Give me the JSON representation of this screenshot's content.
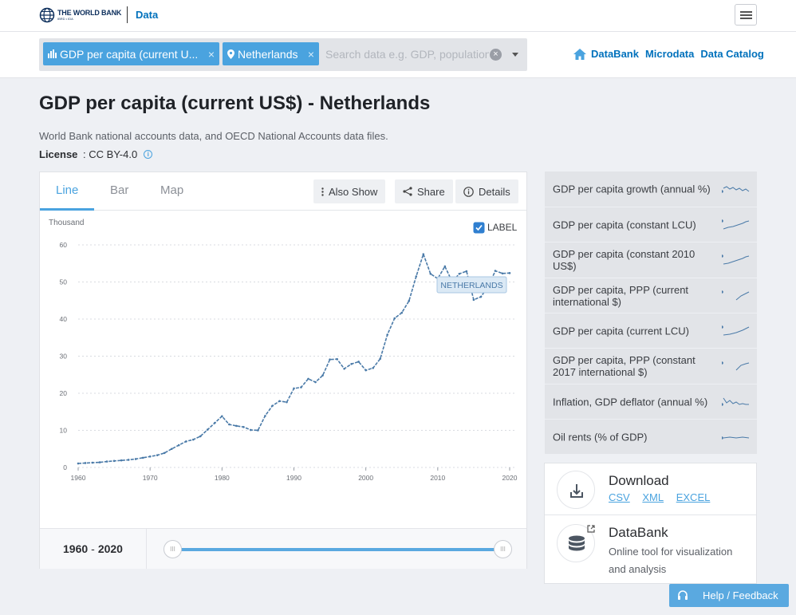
{
  "header": {
    "logo_name": "THE WORLD BANK",
    "logo_sub": "IBRD • IDA",
    "section": "Data"
  },
  "search": {
    "chips": [
      {
        "label": "GDP per capita (current U..."
      },
      {
        "label": "Netherlands"
      }
    ],
    "placeholder": "Search data e.g. GDP, population",
    "chip_remove": "×",
    "clear": "×"
  },
  "nav": {
    "links": [
      "DataBank",
      "Microdata",
      "Data Catalog"
    ]
  },
  "page": {
    "title": "GDP per capita (current US$) - Netherlands",
    "source": "World Bank national accounts data, and OECD National Accounts data files.",
    "license_label": "License",
    "license_sep": " : ",
    "license_value": "CC BY-4.0",
    "info": "i"
  },
  "chart_card": {
    "tabs": [
      "Line",
      "Bar",
      "Map"
    ],
    "active_tab": "Line",
    "actions": [
      "Also Show",
      "Share",
      "Details"
    ],
    "label_toggle": "LABEL",
    "label_checked": true,
    "range_start": "1960",
    "range_sep": "-",
    "range_end": "2020",
    "slider_grip": "III"
  },
  "chart_data": {
    "type": "line",
    "ylabel": "Thousand",
    "xlim": [
      1960,
      2021
    ],
    "ylim": [
      0,
      60
    ],
    "yticks": [
      0,
      10,
      20,
      30,
      40,
      50,
      60
    ],
    "xticks": [
      1960,
      1970,
      1980,
      1990,
      2000,
      2010,
      2020
    ],
    "grid": true,
    "series": [
      {
        "name": "NETHERLANDS",
        "color": "#4a7aa8",
        "x": [
          1960,
          1961,
          1962,
          1963,
          1964,
          1965,
          1966,
          1967,
          1968,
          1969,
          1970,
          1971,
          1972,
          1973,
          1974,
          1975,
          1976,
          1977,
          1978,
          1979,
          1980,
          1981,
          1982,
          1983,
          1984,
          1985,
          1986,
          1987,
          1988,
          1989,
          1990,
          1991,
          1992,
          1993,
          1994,
          1995,
          1996,
          1997,
          1998,
          1999,
          2000,
          2001,
          2002,
          2003,
          2004,
          2005,
          2006,
          2007,
          2008,
          2009,
          2010,
          2011,
          2012,
          2013,
          2014,
          2015,
          2016,
          2017,
          2018,
          2019,
          2020
        ],
        "values": [
          1.07,
          1.19,
          1.28,
          1.38,
          1.59,
          1.76,
          1.9,
          2.05,
          2.27,
          2.6,
          2.95,
          3.3,
          3.9,
          5.0,
          6.0,
          7.0,
          7.5,
          8.4,
          10.2,
          12.0,
          13.8,
          11.6,
          11.2,
          10.9,
          10.1,
          10.0,
          13.9,
          16.6,
          17.9,
          17.6,
          21.3,
          21.6,
          23.9,
          23.0,
          24.8,
          29.1,
          29.2,
          26.6,
          27.9,
          28.5,
          26.2,
          26.8,
          29.3,
          35.8,
          40.2,
          41.7,
          44.9,
          51.5,
          57.5,
          52.2,
          50.9,
          54.2,
          50.1,
          52.2,
          52.9,
          45.2,
          46.0,
          48.7,
          53.0,
          52.3,
          52.4
        ]
      }
    ]
  },
  "related": [
    "GDP per capita growth (annual %)",
    "GDP per capita (constant LCU)",
    "GDP per capita (constant 2010 US$)",
    "GDP per capita, PPP (current international $)",
    "GDP per capita (current LCU)",
    "GDP per capita, PPP (constant 2017 international $)",
    "Inflation, GDP deflator (annual %)",
    "Oil rents (% of GDP)"
  ],
  "download": {
    "title": "Download",
    "formats": [
      "CSV",
      "XML",
      "EXCEL"
    ]
  },
  "databank": {
    "title": "DataBank",
    "desc": "Online tool for visualization and analysis"
  },
  "help": {
    "label": "Help / Feedback"
  }
}
